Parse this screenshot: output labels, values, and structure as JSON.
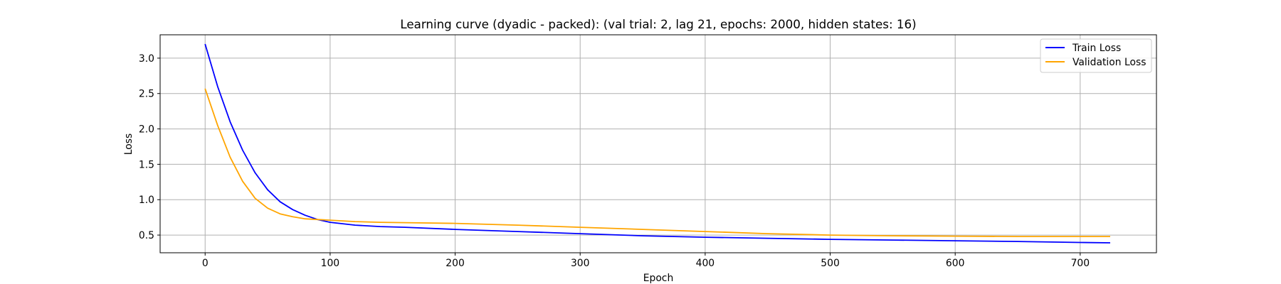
{
  "chart_data": {
    "type": "line",
    "title": "Learning curve (dyadic - packed): (val trial: 2, lag 21, epochs: 2000, hidden states: 16)",
    "xlabel": "Epoch",
    "ylabel": "Loss",
    "xlim": [
      -36,
      761
    ],
    "ylim": [
      0.25,
      3.33
    ],
    "xticks": [
      0,
      100,
      200,
      300,
      400,
      500,
      600,
      700
    ],
    "yticks": [
      0.5,
      1.0,
      1.5,
      2.0,
      2.5,
      3.0
    ],
    "xtick_labels": [
      "0",
      "100",
      "200",
      "300",
      "400",
      "500",
      "600",
      "700"
    ],
    "ytick_labels": [
      "0.5",
      "1.0",
      "1.5",
      "2.0",
      "2.5",
      "3.0"
    ],
    "grid": true,
    "legend_position": "top-right",
    "series": [
      {
        "name": "Train Loss",
        "color": "#0000ff",
        "x": [
          0,
          10,
          20,
          30,
          40,
          50,
          60,
          70,
          80,
          90,
          100,
          120,
          140,
          160,
          200,
          250,
          300,
          350,
          400,
          450,
          500,
          550,
          600,
          650,
          700,
          724
        ],
        "y": [
          3.2,
          2.6,
          2.1,
          1.7,
          1.38,
          1.14,
          0.97,
          0.86,
          0.78,
          0.72,
          0.68,
          0.64,
          0.62,
          0.61,
          0.58,
          0.55,
          0.52,
          0.49,
          0.47,
          0.455,
          0.44,
          0.43,
          0.42,
          0.41,
          0.395,
          0.39
        ]
      },
      {
        "name": "Validation Loss",
        "color": "#ffa500",
        "x": [
          0,
          10,
          20,
          30,
          40,
          50,
          60,
          70,
          80,
          90,
          100,
          120,
          140,
          160,
          200,
          250,
          300,
          350,
          400,
          450,
          500,
          550,
          600,
          650,
          700,
          724
        ],
        "y": [
          2.57,
          2.05,
          1.6,
          1.26,
          1.02,
          0.88,
          0.8,
          0.76,
          0.73,
          0.72,
          0.71,
          0.69,
          0.68,
          0.675,
          0.665,
          0.64,
          0.61,
          0.58,
          0.55,
          0.52,
          0.5,
          0.49,
          0.485,
          0.48,
          0.48,
          0.48
        ]
      }
    ]
  }
}
